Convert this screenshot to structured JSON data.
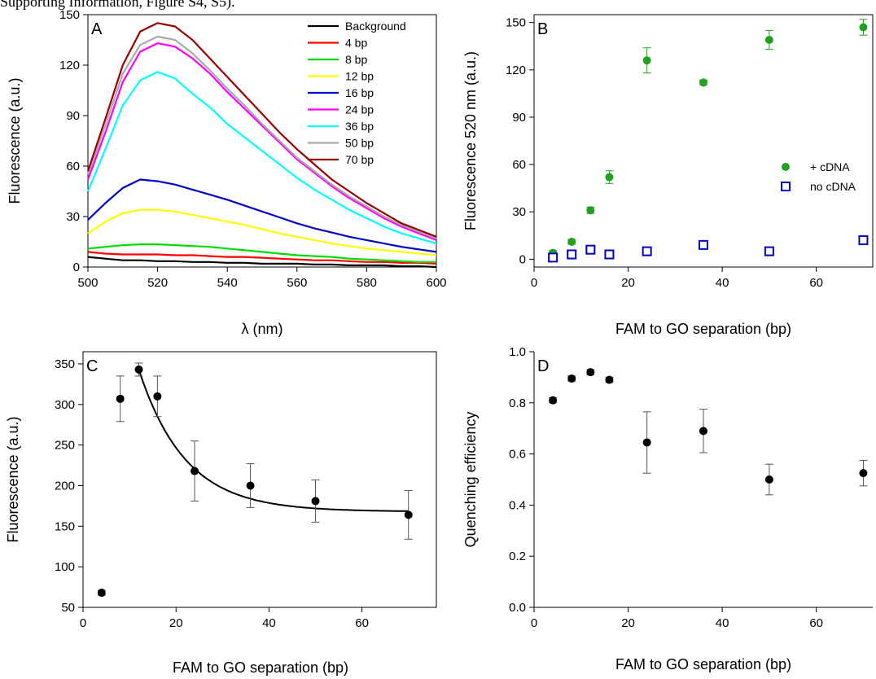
{
  "page": {
    "caption": "Supporting Information, Figure S4, S5)."
  },
  "chart_data": [
    {
      "panel": "A",
      "type": "line",
      "xlabel": "λ (nm)",
      "ylabel": "Fluorescence (a.u.)",
      "xlim": [
        500,
        600
      ],
      "ylim": [
        0,
        150
      ],
      "xticks": [
        500,
        520,
        540,
        560,
        580,
        600
      ],
      "yticks": [
        0,
        30,
        60,
        90,
        120,
        150
      ],
      "legend_position": "top-right",
      "x": [
        500,
        505,
        510,
        515,
        520,
        525,
        530,
        535,
        540,
        545,
        550,
        555,
        560,
        565,
        570,
        575,
        580,
        585,
        590,
        595,
        600
      ],
      "series": [
        {
          "name": "Background",
          "color": "#000000",
          "values": [
            6,
            5,
            4,
            4,
            3.5,
            3.5,
            3,
            3,
            2.5,
            2.5,
            2,
            2,
            2,
            1.5,
            1.5,
            1,
            1,
            1,
            0.5,
            0.5,
            0
          ]
        },
        {
          "name": "4 bp",
          "color": "#ff0000",
          "values": [
            9,
            8,
            7.5,
            7.5,
            7.5,
            7,
            7,
            6.5,
            6,
            6,
            5.5,
            5,
            4.5,
            4,
            4,
            3.5,
            3,
            3,
            2.5,
            2.5,
            2
          ]
        },
        {
          "name": "8 bp",
          "color": "#00dd00",
          "values": [
            11,
            12,
            13,
            13.5,
            13.5,
            13,
            12.5,
            12,
            11,
            10,
            9,
            8,
            7,
            6.5,
            6,
            5,
            4.5,
            4,
            3.5,
            3,
            3
          ]
        },
        {
          "name": "12 bp",
          "color": "#ffff00",
          "values": [
            20,
            27,
            32,
            34,
            34,
            33,
            31,
            29,
            27,
            25,
            22.5,
            20,
            18,
            16,
            14,
            12.5,
            11,
            10,
            9,
            8,
            7
          ]
        },
        {
          "name": "16 bp",
          "color": "#0000cc",
          "values": [
            28,
            38,
            47,
            52,
            51,
            49,
            46,
            43,
            40,
            36.5,
            33,
            29.5,
            26,
            23,
            20.5,
            18,
            16,
            14,
            12,
            10.5,
            9
          ]
        },
        {
          "name": "24 bp",
          "color": "#ff00ff",
          "values": [
            52,
            80,
            110,
            128,
            133,
            131,
            124,
            115,
            104,
            94,
            84,
            74,
            64,
            56,
            48,
            41,
            35,
            29,
            24,
            20,
            16
          ]
        },
        {
          "name": "36 bp",
          "color": "#00ffff",
          "values": [
            45,
            70,
            96,
            111,
            116,
            112,
            103,
            95,
            85,
            77,
            69,
            61,
            53,
            46,
            40,
            34,
            29,
            24,
            20,
            17,
            14
          ]
        },
        {
          "name": "50 bp",
          "color": "#aaaaaa",
          "values": [
            55,
            84,
            115,
            132,
            137,
            135,
            127,
            117,
            106,
            96,
            85,
            75,
            65,
            57,
            49,
            42,
            36,
            30,
            25,
            21,
            17
          ]
        },
        {
          "name": "70 bp",
          "color": "#990000",
          "values": [
            57,
            88,
            120,
            140,
            145,
            143,
            135,
            124,
            113,
            102,
            91,
            80,
            70,
            61,
            52,
            45,
            38,
            32,
            26,
            22,
            18
          ]
        }
      ]
    },
    {
      "panel": "B",
      "type": "scatter",
      "xlabel": "FAM to GO separation (bp)",
      "ylabel": "Fluorescence 520 nm (a.u.)",
      "xlim": [
        0,
        72
      ],
      "ylim": [
        -5,
        155
      ],
      "xticks": [
        0,
        20,
        40,
        60
      ],
      "yticks": [
        0,
        30,
        60,
        90,
        120,
        150
      ],
      "legend_position": "right",
      "series": [
        {
          "name": "+ cDNA",
          "color": "#22a022",
          "marker": "filled-circle",
          "x": [
            4,
            8,
            12,
            16,
            24,
            36,
            50,
            70
          ],
          "y": [
            4,
            11,
            31,
            52,
            126,
            112,
            139,
            147
          ],
          "err": [
            1.5,
            1.5,
            2,
            4,
            8,
            1.5,
            6,
            5
          ]
        },
        {
          "name": "no cDNA",
          "color": "#0000cc",
          "marker": "open-square",
          "x": [
            4,
            8,
            12,
            16,
            24,
            36,
            50,
            70
          ],
          "y": [
            1,
            3,
            6,
            3,
            5,
            9,
            5,
            12
          ],
          "err": [
            0,
            0,
            0,
            0,
            0,
            0,
            0,
            0
          ]
        }
      ]
    },
    {
      "panel": "C",
      "type": "scatter",
      "xlabel": "FAM to GO separation (bp)",
      "ylabel": "Fluorescence (a.u.)",
      "xlim": [
        0,
        76
      ],
      "ylim": [
        50,
        365
      ],
      "xticks": [
        0,
        20,
        40,
        60
      ],
      "yticks": [
        50,
        100,
        150,
        200,
        250,
        300,
        350
      ],
      "series": [
        {
          "name": "",
          "color": "#000000",
          "marker": "filled-circle",
          "x": [
            4,
            8,
            12,
            16,
            24,
            36,
            50,
            70
          ],
          "y": [
            68,
            307,
            343,
            310,
            218,
            200,
            181,
            164
          ],
          "err": [
            3,
            28,
            8,
            25,
            37,
            27,
            26,
            30
          ]
        }
      ],
      "fit": {
        "type": "exponential-decay",
        "x_range": [
          12,
          70
        ],
        "y0": 168,
        "a": 175,
        "x0": 12,
        "tau": 10
      }
    },
    {
      "panel": "D",
      "type": "scatter",
      "xlabel": "FAM to GO separation (bp)",
      "ylabel": "Quenching efficiency",
      "xlim": [
        0,
        72
      ],
      "ylim": [
        0,
        1.0
      ],
      "xticks": [
        0,
        20,
        40,
        60
      ],
      "yticks": [
        "0.0",
        "0.2",
        "0.4",
        "0.6",
        "0.8",
        "1.0"
      ],
      "series": [
        {
          "name": "",
          "color": "#000000",
          "marker": "filled-circle",
          "x": [
            4,
            8,
            12,
            16,
            24,
            36,
            50,
            70
          ],
          "y": [
            0.81,
            0.895,
            0.92,
            0.89,
            0.645,
            0.69,
            0.5,
            0.525
          ],
          "err": [
            0.01,
            0.01,
            0.01,
            0.01,
            0.12,
            0.085,
            0.06,
            0.05
          ]
        }
      ]
    }
  ]
}
